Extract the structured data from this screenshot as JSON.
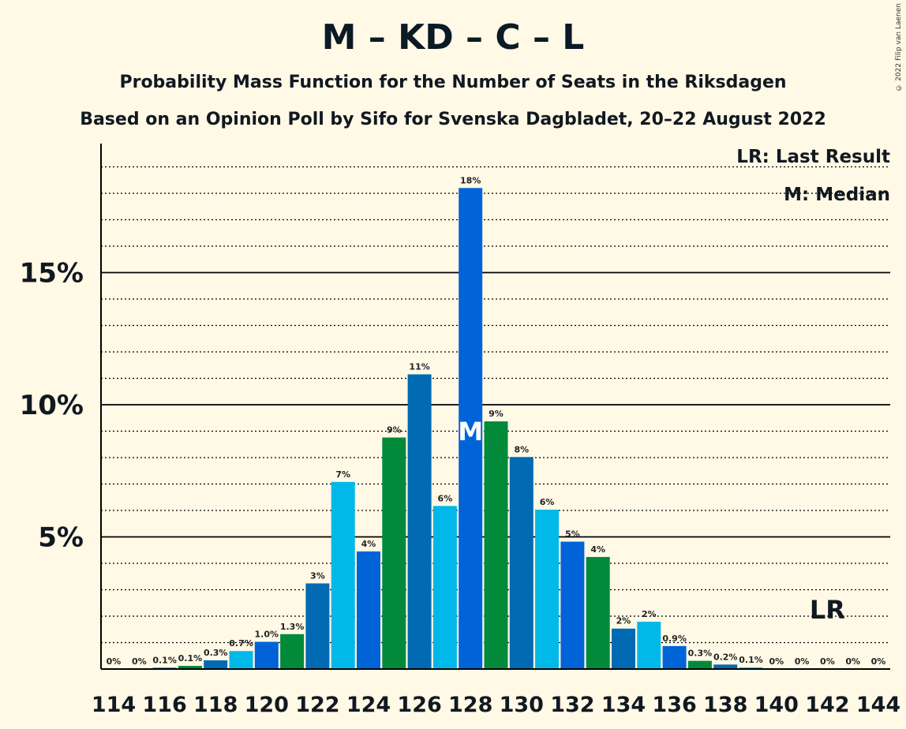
{
  "title": "M – KD – C – L",
  "subtitle": "Probability Mass Function for the Number of Seats in the Riksdagen",
  "subtitle2": "Based on an Opinion Poll by Sifo for Svenska Dagbladet, 20–22 August 2022",
  "copyright": "© 2022 Filip van Laenen",
  "legend": {
    "last_result": "LR: Last Result",
    "median": "M: Median"
  },
  "markers": {
    "median_label": "M",
    "last_result_label": "LR"
  },
  "colors": {
    "background": "#FFF9E6",
    "bar_colors": [
      "#006AB3",
      "#00B9E8",
      "#0064D8",
      "#008A3A"
    ]
  },
  "chart_data": {
    "type": "bar",
    "x": [
      114,
      115,
      116,
      117,
      118,
      119,
      120,
      121,
      122,
      123,
      124,
      125,
      126,
      127,
      128,
      129,
      130,
      131,
      132,
      133,
      134,
      135,
      136,
      137,
      138,
      139,
      140,
      141,
      142,
      143,
      144
    ],
    "values": [
      0,
      0,
      0.05,
      0.12,
      0.33,
      0.68,
      1.03,
      1.32,
      3.24,
      7.08,
      4.45,
      8.76,
      11.15,
      6.17,
      18.2,
      9.37,
      8.02,
      6.03,
      4.82,
      4.24,
      1.53,
      1.79,
      0.87,
      0.31,
      0.17,
      0.06,
      0,
      0,
      0,
      0,
      0
    ],
    "data_labels": [
      "0%",
      "0%",
      "0.1%",
      "0.1%",
      "0.3%",
      "0.7%",
      "1.0%",
      "1.3%",
      "3%",
      "7%",
      "4%",
      "9%",
      "11%",
      "6%",
      "18%",
      "9%",
      "8%",
      "6%",
      "5%",
      "4%",
      "2%",
      "2%",
      "0.9%",
      "0.3%",
      "0.2%",
      "0.1%",
      "0%",
      "0%",
      "0%",
      "0%",
      "0%"
    ],
    "x_tick_labels": [
      "114",
      "116",
      "118",
      "120",
      "122",
      "124",
      "126",
      "128",
      "130",
      "132",
      "134",
      "136",
      "138",
      "140",
      "142",
      "144"
    ],
    "y_tick_labels": [
      "5%",
      "10%",
      "15%"
    ],
    "y_ticks": [
      5,
      10,
      15
    ],
    "ylim": [
      0,
      19.75
    ],
    "median": 128,
    "last_result": 142,
    "grid": "dotted minor every 1%, solid major every 5%"
  }
}
